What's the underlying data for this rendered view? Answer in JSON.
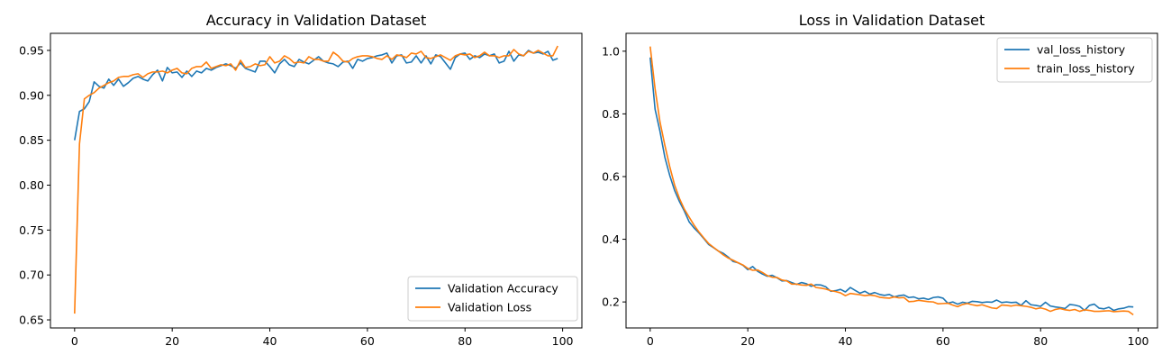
{
  "chart_data": [
    {
      "type": "line",
      "title": "Accuracy in Validation Dataset",
      "xlabel": "",
      "ylabel": "",
      "xlim": [
        -4.95,
        103.95
      ],
      "ylim": [
        0.641,
        0.969
      ],
      "xticks": [
        0,
        20,
        40,
        60,
        80,
        100
      ],
      "yticks": [
        0.65,
        0.7,
        0.75,
        0.8,
        0.85,
        0.9,
        0.95
      ],
      "ytick_labels": [
        "0.65",
        "0.70",
        "0.75",
        "0.80",
        "0.85",
        "0.90",
        "0.95"
      ],
      "legend_position": "bottom-right",
      "grid": false,
      "x": [
        0,
        1,
        2,
        3,
        4,
        5,
        6,
        7,
        8,
        9,
        10,
        11,
        12,
        13,
        14,
        15,
        16,
        17,
        18,
        19,
        20,
        21,
        22,
        23,
        24,
        25,
        26,
        27,
        28,
        29,
        30,
        31,
        32,
        33,
        34,
        35,
        36,
        37,
        38,
        39,
        40,
        41,
        42,
        43,
        44,
        45,
        46,
        47,
        48,
        49,
        50,
        51,
        52,
        53,
        54,
        55,
        56,
        57,
        58,
        59,
        60,
        61,
        62,
        63,
        64,
        65,
        66,
        67,
        68,
        69,
        70,
        71,
        72,
        73,
        74,
        75,
        76,
        77,
        78,
        79,
        80,
        81,
        82,
        83,
        84,
        85,
        86,
        87,
        88,
        89,
        90,
        91,
        92,
        93,
        94,
        95,
        96,
        97,
        98,
        99
      ],
      "series": [
        {
          "name": "Validation Accuracy",
          "color": "#1f77b4",
          "values": [
            0.85,
            0.882,
            0.885,
            0.893,
            0.915,
            0.91,
            0.908,
            0.918,
            0.911,
            0.918,
            0.91,
            0.914,
            0.919,
            0.921,
            0.918,
            0.916,
            0.923,
            0.928,
            0.916,
            0.931,
            0.925,
            0.926,
            0.92,
            0.927,
            0.921,
            0.927,
            0.925,
            0.93,
            0.928,
            0.931,
            0.933,
            0.935,
            0.933,
            0.93,
            0.936,
            0.93,
            0.928,
            0.926,
            0.938,
            0.938,
            0.932,
            0.925,
            0.935,
            0.94,
            0.934,
            0.932,
            0.94,
            0.937,
            0.935,
            0.939,
            0.943,
            0.938,
            0.936,
            0.935,
            0.932,
            0.937,
            0.938,
            0.93,
            0.94,
            0.938,
            0.941,
            0.942,
            0.944,
            0.945,
            0.947,
            0.936,
            0.944,
            0.945,
            0.936,
            0.937,
            0.944,
            0.936,
            0.944,
            0.935,
            0.945,
            0.943,
            0.936,
            0.929,
            0.942,
            0.946,
            0.947,
            0.94,
            0.944,
            0.942,
            0.946,
            0.944,
            0.946,
            0.936,
            0.938,
            0.949,
            0.938,
            0.945,
            0.944,
            0.95,
            0.947,
            0.948,
            0.946,
            0.949,
            0.939,
            0.941
          ]
        },
        {
          "name": "Validation Loss",
          "color": "#ff7f0e",
          "values": [
            0.657,
            0.846,
            0.896,
            0.9,
            0.903,
            0.908,
            0.911,
            0.914,
            0.916,
            0.92,
            0.921,
            0.921,
            0.923,
            0.924,
            0.92,
            0.924,
            0.926,
            0.926,
            0.927,
            0.925,
            0.928,
            0.93,
            0.925,
            0.924,
            0.93,
            0.932,
            0.932,
            0.937,
            0.93,
            0.932,
            0.934,
            0.933,
            0.935,
            0.928,
            0.939,
            0.931,
            0.932,
            0.935,
            0.933,
            0.934,
            0.943,
            0.936,
            0.938,
            0.944,
            0.941,
            0.936,
            0.937,
            0.936,
            0.943,
            0.94,
            0.94,
            0.938,
            0.938,
            0.948,
            0.944,
            0.938,
            0.937,
            0.941,
            0.943,
            0.944,
            0.944,
            0.943,
            0.941,
            0.94,
            0.944,
            0.94,
            0.945,
            0.944,
            0.942,
            0.947,
            0.946,
            0.949,
            0.942,
            0.941,
            0.943,
            0.945,
            0.942,
            0.939,
            0.944,
            0.946,
            0.945,
            0.946,
            0.942,
            0.944,
            0.948,
            0.944,
            0.944,
            0.942,
            0.944,
            0.944,
            0.951,
            0.946,
            0.944,
            0.949,
            0.947,
            0.95,
            0.947,
            0.944,
            0.944,
            0.955
          ]
        }
      ]
    },
    {
      "type": "line",
      "title": "Loss in Validation Dataset",
      "xlabel": "",
      "ylabel": "",
      "xlim": [
        -4.95,
        103.95
      ],
      "ylim": [
        0.117,
        1.057
      ],
      "xticks": [
        0,
        20,
        40,
        60,
        80,
        100
      ],
      "yticks": [
        0.2,
        0.4,
        0.6,
        0.8,
        1.0
      ],
      "ytick_labels": [
        "0.2",
        "0.4",
        "0.6",
        "0.8",
        "1.0"
      ],
      "legend_position": "top-right",
      "grid": false,
      "x": [
        0,
        1,
        2,
        3,
        4,
        5,
        6,
        7,
        8,
        9,
        10,
        11,
        12,
        13,
        14,
        15,
        16,
        17,
        18,
        19,
        20,
        21,
        22,
        23,
        24,
        25,
        26,
        27,
        28,
        29,
        30,
        31,
        32,
        33,
        34,
        35,
        36,
        37,
        38,
        39,
        40,
        41,
        42,
        43,
        44,
        45,
        46,
        47,
        48,
        49,
        50,
        51,
        52,
        53,
        54,
        55,
        56,
        57,
        58,
        59,
        60,
        61,
        62,
        63,
        64,
        65,
        66,
        67,
        68,
        69,
        70,
        71,
        72,
        73,
        74,
        75,
        76,
        77,
        78,
        79,
        80,
        81,
        82,
        83,
        84,
        85,
        86,
        87,
        88,
        89,
        90,
        91,
        92,
        93,
        94,
        95,
        96,
        97,
        98,
        99
      ],
      "series": [
        {
          "name": "val_loss_history",
          "color": "#1f77b4",
          "values": [
            0.98,
            0.815,
            0.745,
            0.662,
            0.604,
            0.556,
            0.52,
            0.49,
            0.455,
            0.436,
            0.42,
            0.402,
            0.383,
            0.373,
            0.362,
            0.355,
            0.343,
            0.329,
            0.325,
            0.317,
            0.303,
            0.313,
            0.298,
            0.289,
            0.282,
            0.285,
            0.277,
            0.267,
            0.268,
            0.262,
            0.256,
            0.262,
            0.258,
            0.25,
            0.255,
            0.254,
            0.248,
            0.234,
            0.236,
            0.24,
            0.232,
            0.246,
            0.237,
            0.228,
            0.234,
            0.225,
            0.23,
            0.224,
            0.221,
            0.224,
            0.216,
            0.22,
            0.222,
            0.214,
            0.216,
            0.21,
            0.212,
            0.208,
            0.214,
            0.216,
            0.212,
            0.196,
            0.2,
            0.193,
            0.199,
            0.196,
            0.202,
            0.201,
            0.198,
            0.2,
            0.199,
            0.206,
            0.198,
            0.2,
            0.198,
            0.199,
            0.189,
            0.204,
            0.191,
            0.189,
            0.186,
            0.199,
            0.187,
            0.184,
            0.182,
            0.179,
            0.192,
            0.19,
            0.186,
            0.173,
            0.189,
            0.193,
            0.18,
            0.178,
            0.183,
            0.173,
            0.178,
            0.18,
            0.185,
            0.184
          ]
        },
        {
          "name": "train_loss_history",
          "color": "#ff7f0e",
          "values": [
            1.015,
            0.88,
            0.775,
            0.7,
            0.632,
            0.573,
            0.53,
            0.496,
            0.47,
            0.445,
            0.423,
            0.404,
            0.386,
            0.374,
            0.362,
            0.35,
            0.34,
            0.333,
            0.325,
            0.318,
            0.307,
            0.301,
            0.302,
            0.294,
            0.284,
            0.279,
            0.278,
            0.27,
            0.267,
            0.257,
            0.257,
            0.254,
            0.253,
            0.257,
            0.246,
            0.244,
            0.241,
            0.236,
            0.233,
            0.229,
            0.22,
            0.227,
            0.225,
            0.223,
            0.22,
            0.222,
            0.22,
            0.215,
            0.213,
            0.212,
            0.216,
            0.213,
            0.214,
            0.201,
            0.202,
            0.205,
            0.203,
            0.201,
            0.2,
            0.194,
            0.195,
            0.196,
            0.19,
            0.185,
            0.192,
            0.195,
            0.191,
            0.188,
            0.191,
            0.186,
            0.181,
            0.179,
            0.19,
            0.189,
            0.187,
            0.19,
            0.188,
            0.186,
            0.183,
            0.178,
            0.181,
            0.177,
            0.17,
            0.176,
            0.179,
            0.175,
            0.173,
            0.176,
            0.17,
            0.175,
            0.173,
            0.17,
            0.17,
            0.171,
            0.172,
            0.169,
            0.17,
            0.171,
            0.17,
            0.159
          ]
        }
      ]
    }
  ]
}
